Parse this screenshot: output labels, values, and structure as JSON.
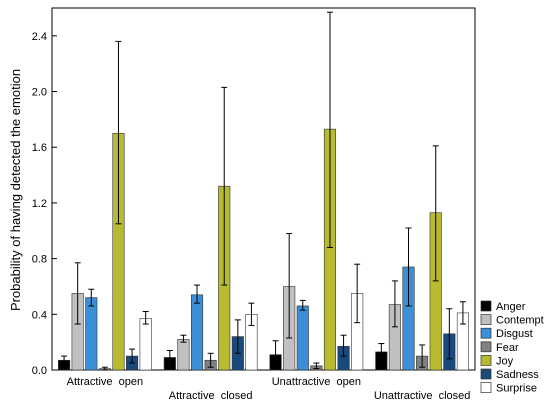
{
  "chart_data": {
    "type": "bar",
    "ylabel": "Probability of having detected the emotion",
    "ylim": [
      0,
      2.6
    ],
    "yticks": [
      "0.0",
      "0.4",
      "0.8",
      "1.2",
      "1.6",
      "2.0",
      "2.4"
    ],
    "grid": false,
    "legend_position": "bottom-right",
    "categories": [
      "Attractive  open",
      "Attractive  closed",
      "Unattractive  open",
      "Unattractive  closed"
    ],
    "series": [
      {
        "name": "Anger",
        "color": "#000000",
        "values": [
          0.07,
          0.09,
          0.11,
          0.13
        ],
        "err_low": [
          0.04,
          0.04,
          0.03,
          0.07
        ],
        "err_high": [
          0.1,
          0.14,
          0.21,
          0.19
        ]
      },
      {
        "name": "Contempt",
        "color": "#c0c0c0",
        "values": [
          0.55,
          0.22,
          0.6,
          0.47
        ],
        "err_low": [
          0.33,
          0.2,
          0.23,
          0.31
        ],
        "err_high": [
          0.77,
          0.25,
          0.98,
          0.64
        ]
      },
      {
        "name": "Disgust",
        "color": "#3a8fd6",
        "values": [
          0.52,
          0.54,
          0.46,
          0.74
        ],
        "err_low": [
          0.46,
          0.48,
          0.43,
          0.46
        ],
        "err_high": [
          0.58,
          0.61,
          0.5,
          1.02
        ]
      },
      {
        "name": "Fear",
        "color": "#808080",
        "values": [
          0.01,
          0.07,
          0.03,
          0.1
        ],
        "err_low": [
          0.0,
          0.02,
          0.01,
          0.02
        ],
        "err_high": [
          0.02,
          0.12,
          0.05,
          0.18
        ]
      },
      {
        "name": "Joy",
        "color": "#b8bb30",
        "values": [
          1.7,
          1.32,
          1.73,
          1.13
        ],
        "err_low": [
          1.05,
          0.61,
          0.88,
          0.64
        ],
        "err_high": [
          2.36,
          2.03,
          2.57,
          1.61
        ]
      },
      {
        "name": "Sadness",
        "color": "#1a4a7c",
        "values": [
          0.1,
          0.24,
          0.17,
          0.26
        ],
        "err_low": [
          0.05,
          0.12,
          0.1,
          0.08
        ],
        "err_high": [
          0.15,
          0.36,
          0.25,
          0.44
        ]
      },
      {
        "name": "Surprise",
        "color": "#ffffff",
        "values": [
          0.37,
          0.4,
          0.55,
          0.41
        ],
        "err_low": [
          0.33,
          0.32,
          0.34,
          0.33
        ],
        "err_high": [
          0.42,
          0.48,
          0.76,
          0.49
        ]
      }
    ]
  }
}
